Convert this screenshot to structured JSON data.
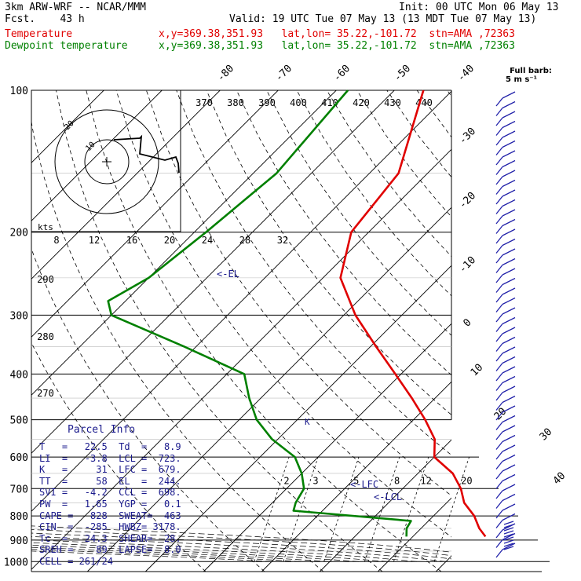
{
  "header": {
    "model": "3km ARW-WRF -- NCAR/MMM",
    "init": "Init: 00 UTC Mon 06 May 13",
    "fcst": "Fcst.    43 h",
    "valid": "Valid: 19 UTC Tue 07 May 13 (13 MDT Tue 07 May 13)",
    "temp_label": "Temperature",
    "temp_info": "x,y=369.38,351.93   lat,lon= 35.22,-101.72  stn=AMA ,72363",
    "dew_label": "Dewpoint temperature",
    "dew_info": "x,y=369.38,351.93   lat,lon= 35.22,-101.72  stn=AMA ,72363"
  },
  "barb_legend": {
    "line1": "Full barb:",
    "line2": "5 m s⁻¹"
  },
  "colors": {
    "temperature": "#e00000",
    "dewpoint": "#008000",
    "barbs": "#2222aa",
    "parcel": "#1a1a8c"
  },
  "hodograph": {
    "units": "kts",
    "ring_labels": [
      "10",
      "20"
    ]
  },
  "parcel_info": {
    "title": "Parcel Info",
    "rows": [
      "T   =   22.5  Td  =   8.9",
      "LI  =   -3.8  LCL =  723.",
      "K   =     31  LFC =  679.",
      "TT  =     58  EL  =  244.",
      "SVI =   -4.2  CCL =  698.",
      "PW  =   1.65  YGP =   0.1",
      "CAPE =   828  SWEAT=  463",
      "CIN  =  -285  HWBZ= 3178.",
      "Tc  =   24.3  SHEAR=  28.",
      "SREH =    89  LAPSE=  8.0",
      "CELL = 261/24"
    ]
  },
  "level_labels": {
    "el": "<-EL",
    "lfc": "<-LFC",
    "lcl": "<-LCL",
    "k": "K"
  },
  "chart_data": {
    "type": "line",
    "pressure_ticks": [
      100,
      200,
      300,
      400,
      500,
      600,
      700,
      800,
      900,
      1000
    ],
    "isotherm_labels": [
      "-80",
      "-70",
      "-60",
      "-50",
      "-40",
      "-30",
      "-20",
      "-10",
      "0",
      "10",
      "20",
      "30",
      "40"
    ],
    "theta_labels_top": [
      "370",
      "380",
      "390",
      "400",
      "410",
      "420",
      "430",
      "440"
    ],
    "theta_labels_side": [
      "290",
      "280",
      "270"
    ],
    "mixing_ratio_labels": [
      "2",
      "3",
      "5",
      "8",
      "12",
      "20"
    ],
    "hodo_speed_labels": [
      "8",
      "12",
      "16",
      "20",
      "24",
      "28",
      "32"
    ],
    "series": [
      {
        "name": "Temperature",
        "points": [
          [
            100,
            -65
          ],
          [
            150,
            -55
          ],
          [
            200,
            -53
          ],
          [
            250,
            -47
          ],
          [
            300,
            -38
          ],
          [
            350,
            -29
          ],
          [
            400,
            -21
          ],
          [
            450,
            -14
          ],
          [
            500,
            -8
          ],
          [
            550,
            -3
          ],
          [
            600,
            0
          ],
          [
            650,
            6
          ],
          [
            700,
            10
          ],
          [
            750,
            13
          ],
          [
            800,
            17
          ],
          [
            850,
            20
          ],
          [
            885,
            22.5
          ]
        ]
      },
      {
        "name": "Dewpoint temperature",
        "points": [
          [
            100,
            -78
          ],
          [
            150,
            -76
          ],
          [
            200,
            -78
          ],
          [
            250,
            -80
          ],
          [
            280,
            -83
          ],
          [
            300,
            -80
          ],
          [
            350,
            -62
          ],
          [
            400,
            -47
          ],
          [
            450,
            -42
          ],
          [
            500,
            -37
          ],
          [
            550,
            -31
          ],
          [
            600,
            -24
          ],
          [
            650,
            -20
          ],
          [
            700,
            -17
          ],
          [
            750,
            -16
          ],
          [
            780,
            -15
          ],
          [
            820,
            7
          ],
          [
            850,
            7.5
          ],
          [
            885,
            8.9
          ]
        ]
      }
    ]
  }
}
